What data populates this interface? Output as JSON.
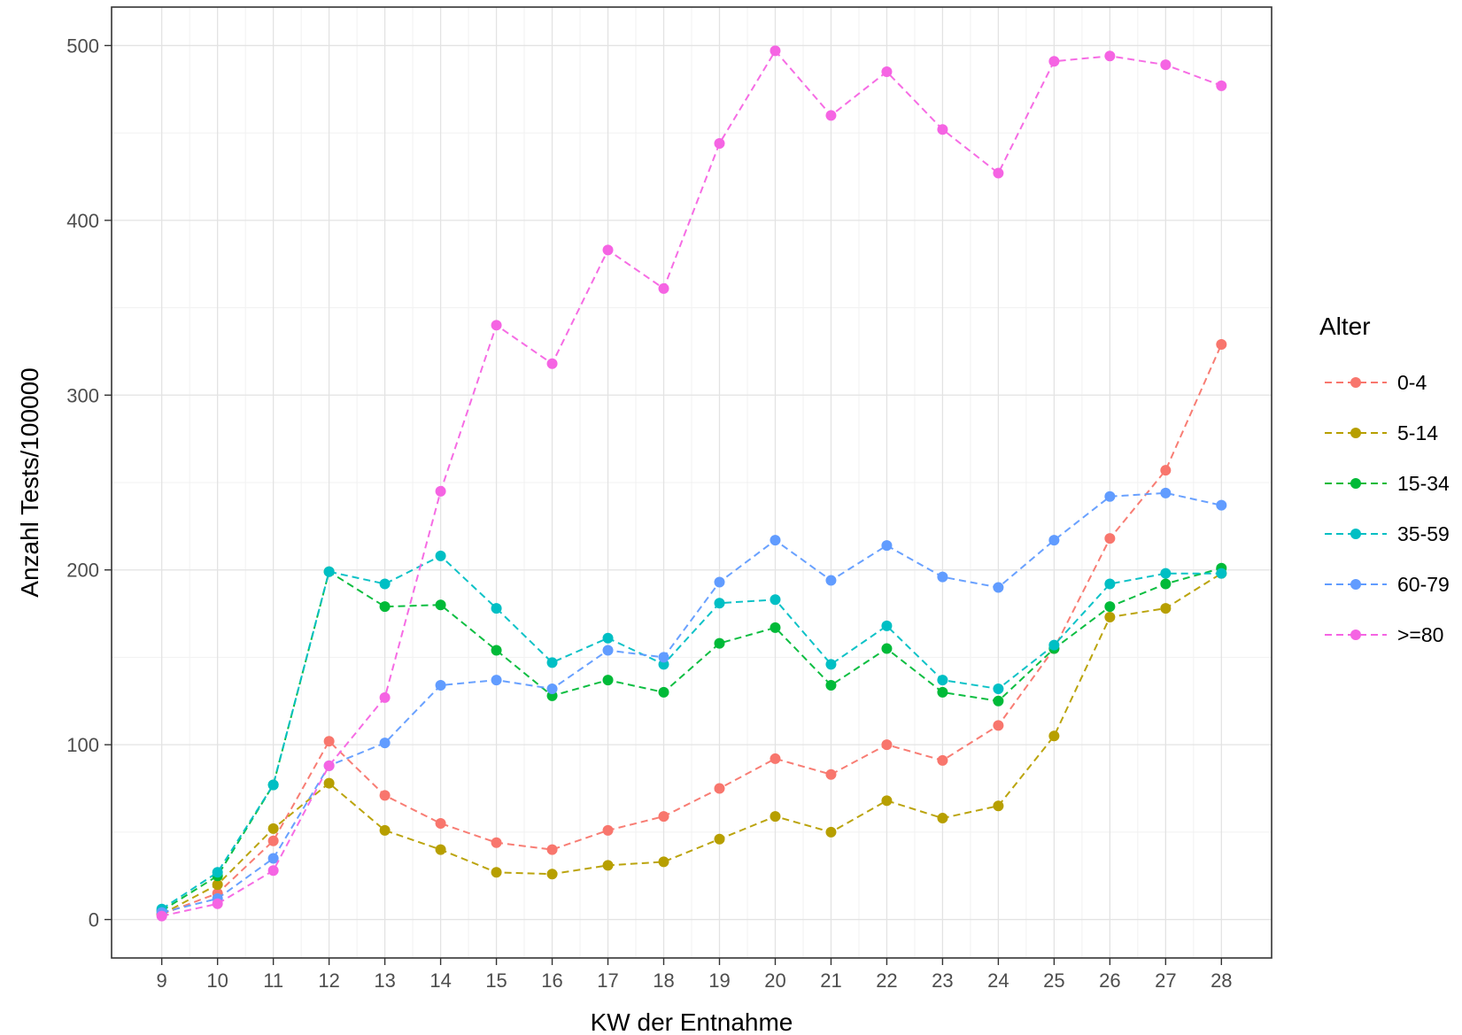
{
  "chart_data": {
    "type": "line",
    "xlabel": "KW der Entnahme",
    "ylabel": "Anzahl Tests/100000",
    "xlim": [
      8.1,
      28.9
    ],
    "ylim": [
      -22,
      522
    ],
    "x": [
      9,
      10,
      11,
      12,
      13,
      14,
      15,
      16,
      17,
      18,
      19,
      20,
      21,
      22,
      23,
      24,
      25,
      26,
      27,
      28
    ],
    "xticks": [
      "9",
      "10",
      "11",
      "12",
      "13",
      "14",
      "15",
      "16",
      "17",
      "18",
      "19",
      "20",
      "21",
      "22",
      "23",
      "24",
      "25",
      "26",
      "27",
      "28"
    ],
    "yticks": [
      0,
      100,
      200,
      300,
      400,
      500
    ],
    "ytick_labels": [
      "0",
      "100",
      "200",
      "300",
      "400",
      "500"
    ],
    "grid": true,
    "line_style": "dashed",
    "legend": {
      "title": "Alter",
      "position": "right"
    },
    "series": [
      {
        "name": "0-4",
        "color": "#F8766D",
        "values": [
          3,
          15,
          45,
          102,
          71,
          55,
          44,
          40,
          51,
          59,
          75,
          92,
          83,
          100,
          91,
          111,
          155,
          218,
          257,
          329
        ]
      },
      {
        "name": "5-14",
        "color": "#B79F00",
        "values": [
          3,
          20,
          52,
          78,
          51,
          40,
          27,
          26,
          31,
          33,
          46,
          59,
          50,
          68,
          58,
          65,
          105,
          173,
          178,
          198
        ]
      },
      {
        "name": "15-34",
        "color": "#00BA38",
        "values": [
          5,
          25,
          77,
          199,
          179,
          180,
          154,
          128,
          137,
          130,
          158,
          167,
          134,
          155,
          130,
          125,
          155,
          179,
          192,
          201
        ]
      },
      {
        "name": "35-59",
        "color": "#00BFC4",
        "values": [
          6,
          27,
          77,
          199,
          192,
          208,
          178,
          147,
          161,
          146,
          181,
          183,
          146,
          168,
          137,
          132,
          157,
          192,
          198,
          198
        ]
      },
      {
        "name": "60-79",
        "color": "#619CFF",
        "values": [
          4,
          12,
          35,
          88,
          101,
          134,
          137,
          132,
          154,
          150,
          193,
          217,
          194,
          214,
          196,
          190,
          217,
          242,
          244,
          237
        ]
      },
      {
        "name": ">=80",
        "color": "#F564E3",
        "values": [
          2,
          9,
          28,
          88,
          127,
          245,
          340,
          318,
          383,
          361,
          444,
          497,
          460,
          485,
          452,
          427,
          491,
          494,
          489,
          477
        ]
      }
    ]
  }
}
